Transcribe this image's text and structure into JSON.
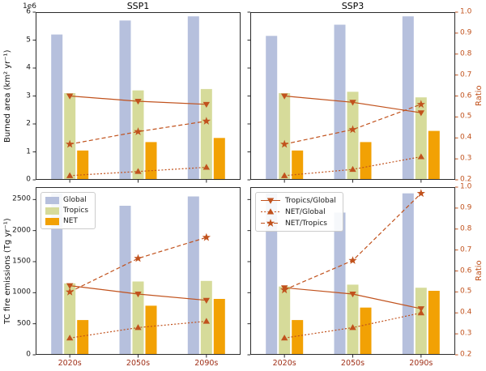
{
  "figure": {
    "titles": {
      "ssp1": "SSP1",
      "ssp3": "SSP3"
    },
    "axis_labels": {
      "burned_area": "Burned area (km² yr⁻¹)",
      "emissions": "TC fire emissions (Tg yr⁻¹)",
      "ratio": "Ratio"
    },
    "offset_text": "1e6"
  },
  "colors": {
    "global": "#b6c0dd",
    "tropics": "#d6db9a",
    "net": "#f2a104",
    "line": "#c1521d",
    "xtick": "#a03018",
    "axis_text": "#1a1a1a"
  },
  "legends": {
    "bars": [
      "Global",
      "Tropics",
      "NET"
    ],
    "lines": [
      "Tropics/Global",
      "NET/Global",
      "NET/Tropics"
    ]
  },
  "chart_data": [
    {
      "panel": "top-left",
      "scenario": "SSP1",
      "variable": "Burned area (km² yr⁻¹)",
      "type": "bar+line",
      "value_scale": "1e6",
      "categories": [
        "2020s",
        "2050s",
        "2090s"
      ],
      "bar_axis": {
        "lim": [
          0,
          6
        ],
        "ticks": [
          "0",
          "1",
          "2",
          "3",
          "4",
          "5",
          "6"
        ]
      },
      "ratio_axis": {
        "lim": [
          0.2,
          1.0
        ],
        "ticks": [
          "0.2",
          "0.3",
          "0.4",
          "0.5",
          "0.6",
          "0.7",
          "0.8",
          "0.9",
          "1.0"
        ]
      },
      "bar_series": [
        {
          "name": "Global",
          "color": "global",
          "values": [
            5.2,
            5.7,
            5.85
          ]
        },
        {
          "name": "Tropics",
          "color": "tropics",
          "values": [
            3.1,
            3.2,
            3.25
          ]
        },
        {
          "name": "NET",
          "color": "net",
          "values": [
            1.05,
            1.35,
            1.5
          ]
        }
      ],
      "line_series": [
        {
          "name": "Tropics/Global",
          "marker": "triangle-down",
          "dash": "solid",
          "values": [
            0.6,
            0.575,
            0.56
          ]
        },
        {
          "name": "NET/Global",
          "marker": "triangle-up",
          "dash": "dotted",
          "values": [
            0.22,
            0.24,
            0.26
          ]
        },
        {
          "name": "NET/Tropics",
          "marker": "star",
          "dash": "dashed",
          "values": [
            0.37,
            0.43,
            0.48
          ]
        }
      ]
    },
    {
      "panel": "top-right",
      "scenario": "SSP3",
      "variable": "Burned area (km² yr⁻¹)",
      "type": "bar+line",
      "value_scale": "1e6",
      "categories": [
        "2020s",
        "2050s",
        "2090s"
      ],
      "bar_axis": {
        "lim": [
          0,
          6
        ],
        "ticks": [
          "0",
          "1",
          "2",
          "3",
          "4",
          "5",
          "6"
        ]
      },
      "ratio_axis": {
        "lim": [
          0.2,
          1.0
        ],
        "ticks": [
          "0.2",
          "0.3",
          "0.4",
          "0.5",
          "0.6",
          "0.7",
          "0.8",
          "0.9",
          "1.0"
        ]
      },
      "bar_series": [
        {
          "name": "Global",
          "color": "global",
          "values": [
            5.15,
            5.55,
            5.85
          ]
        },
        {
          "name": "Tropics",
          "color": "tropics",
          "values": [
            3.1,
            3.15,
            2.95
          ]
        },
        {
          "name": "NET",
          "color": "net",
          "values": [
            1.05,
            1.35,
            1.75
          ]
        }
      ],
      "line_series": [
        {
          "name": "Tropics/Global",
          "marker": "triangle-down",
          "dash": "solid",
          "values": [
            0.6,
            0.57,
            0.52
          ]
        },
        {
          "name": "NET/Global",
          "marker": "triangle-up",
          "dash": "dotted",
          "values": [
            0.22,
            0.25,
            0.31
          ]
        },
        {
          "name": "NET/Tropics",
          "marker": "star",
          "dash": "dashed",
          "values": [
            0.37,
            0.44,
            0.56
          ]
        }
      ]
    },
    {
      "panel": "bottom-left",
      "scenario": "SSP1",
      "variable": "TC fire emissions (Tg yr⁻¹)",
      "type": "bar+line",
      "categories": [
        "2020s",
        "2050s",
        "2090s"
      ],
      "bar_axis": {
        "lim": [
          0,
          2700
        ],
        "ticks": [
          "0",
          "500",
          "1000",
          "1500",
          "2000",
          "2500"
        ]
      },
      "ratio_axis": {
        "lim": [
          0.2,
          1.0
        ],
        "ticks": [
          "0.2",
          "0.3",
          "0.4",
          "0.5",
          "0.6",
          "0.7",
          "0.8",
          "0.9",
          "1.0"
        ]
      },
      "bar_series": [
        {
          "name": "Global",
          "color": "global",
          "values": [
            2600,
            2400,
            2550
          ]
        },
        {
          "name": "Tropics",
          "color": "tropics",
          "values": [
            1150,
            1180,
            1190
          ]
        },
        {
          "name": "NET",
          "color": "net",
          "values": [
            560,
            790,
            900
          ]
        }
      ],
      "line_series": [
        {
          "name": "Tropics/Global",
          "marker": "triangle-down",
          "dash": "solid",
          "values": [
            0.53,
            0.49,
            0.46
          ]
        },
        {
          "name": "NET/Global",
          "marker": "triangle-up",
          "dash": "dotted",
          "values": [
            0.28,
            0.33,
            0.36
          ]
        },
        {
          "name": "NET/Tropics",
          "marker": "star",
          "dash": "dashed",
          "values": [
            0.5,
            0.66,
            0.76
          ]
        }
      ]
    },
    {
      "panel": "bottom-right",
      "scenario": "SSP3",
      "variable": "TC fire emissions (Tg yr⁻¹)",
      "type": "bar+line",
      "categories": [
        "2020s",
        "2050s",
        "2090s"
      ],
      "bar_axis": {
        "lim": [
          0,
          2700
        ],
        "ticks": [
          "0",
          "500",
          "1000",
          "1500",
          "2000",
          "2500"
        ]
      },
      "ratio_axis": {
        "lim": [
          0.2,
          1.0
        ],
        "ticks": [
          "0.2",
          "0.3",
          "0.4",
          "0.5",
          "0.6",
          "0.7",
          "0.8",
          "0.9",
          "1.0"
        ]
      },
      "bar_series": [
        {
          "name": "Global",
          "color": "global",
          "values": [
            2600,
            2290,
            2600
          ]
        },
        {
          "name": "Tropics",
          "color": "tropics",
          "values": [
            1100,
            1130,
            1080
          ]
        },
        {
          "name": "NET",
          "color": "net",
          "values": [
            560,
            760,
            1030
          ]
        }
      ],
      "line_series": [
        {
          "name": "Tropics/Global",
          "marker": "triangle-down",
          "dash": "solid",
          "values": [
            0.52,
            0.49,
            0.42
          ]
        },
        {
          "name": "NET/Global",
          "marker": "triangle-up",
          "dash": "dotted",
          "values": [
            0.28,
            0.33,
            0.4
          ]
        },
        {
          "name": "NET/Tropics",
          "marker": "star",
          "dash": "dashed",
          "values": [
            0.51,
            0.65,
            0.97
          ]
        }
      ]
    }
  ]
}
